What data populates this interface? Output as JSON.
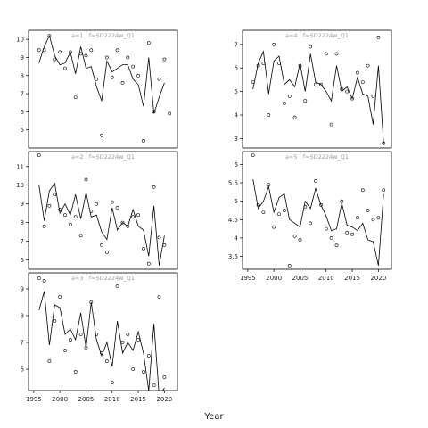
{
  "figure": {
    "xlabel": "Year"
  },
  "chart_data": [
    {
      "type": "line",
      "title": "a=1 : f=SD2224w_Q1",
      "xlim": [
        1994,
        2022.5
      ],
      "ylim": [
        4,
        10.5
      ],
      "yticks": [
        5,
        6,
        7,
        8,
        9,
        10
      ],
      "xticks": [],
      "series": [
        {
          "style": "line",
          "x": [
            1996,
            1997,
            1998,
            1999,
            2000,
            2001,
            2002,
            2003,
            2004,
            2005,
            2006,
            2007,
            2008,
            2009,
            2010,
            2011,
            2012,
            2013,
            2014,
            2015,
            2016,
            2017,
            2018,
            2019,
            2020
          ],
          "y": [
            8.7,
            9.6,
            10.2,
            9.1,
            8.6,
            8.7,
            9.3,
            8.1,
            9.6,
            8.4,
            8.5,
            7.4,
            6.6,
            8.8,
            8.2,
            8.4,
            8.6,
            8.6,
            7.8,
            7.5,
            6.3,
            9.0,
            5.9,
            6.8,
            7.6
          ]
        },
        {
          "style": "points",
          "x": [
            1996,
            1997,
            1998,
            1999,
            2000,
            2001,
            2002,
            2003,
            2004,
            2005,
            2006,
            2007,
            2008,
            2009,
            2010,
            2011,
            2012,
            2013,
            2014,
            2015,
            2016,
            2017,
            2018,
            2019,
            2020,
            2021
          ],
          "y": [
            9.4,
            9.4,
            10.2,
            8.9,
            9.3,
            8.4,
            9.3,
            6.8,
            9.2,
            9.1,
            9.4,
            7.8,
            4.7,
            9.0,
            7.9,
            9.4,
            7.6,
            9.0,
            8.5,
            8.0,
            4.4,
            9.8,
            6.0,
            7.8,
            8.9,
            5.9
          ]
        }
      ]
    },
    {
      "type": "line",
      "title": "a=2 : f=SD2224w_Q1",
      "xlim": [
        1994,
        2022.5
      ],
      "ylim": [
        5.5,
        11.8
      ],
      "yticks": [
        6,
        7,
        8,
        9,
        10,
        11
      ],
      "xticks": [],
      "series": [
        {
          "style": "line",
          "x": [
            1996,
            1997,
            1998,
            1999,
            2000,
            2001,
            2002,
            2003,
            2004,
            2005,
            2006,
            2007,
            2008,
            2009,
            2010,
            2011,
            2012,
            2013,
            2014,
            2015,
            2016,
            2017,
            2018,
            2019,
            2020
          ],
          "y": [
            10.0,
            8.1,
            9.7,
            10.1,
            8.5,
            9.0,
            8.4,
            9.5,
            8.2,
            9.6,
            8.3,
            8.4,
            7.5,
            7.1,
            8.8,
            7.6,
            8.0,
            7.8,
            8.7,
            7.8,
            7.6,
            6.2,
            8.9,
            5.7,
            7.3
          ]
        },
        {
          "style": "points",
          "x": [
            1996,
            1997,
            1998,
            1999,
            2000,
            2001,
            2002,
            2003,
            2004,
            2005,
            2006,
            2007,
            2008,
            2009,
            2010,
            2011,
            2012,
            2013,
            2014,
            2015,
            2016,
            2017,
            2018,
            2019,
            2020
          ],
          "y": [
            11.6,
            7.8,
            8.9,
            9.5,
            8.7,
            8.4,
            7.9,
            8.3,
            7.3,
            10.3,
            8.6,
            9.0,
            6.8,
            6.4,
            9.1,
            8.8,
            8.0,
            7.8,
            8.3,
            8.4,
            6.6,
            5.8,
            9.9,
            7.2,
            6.8
          ]
        }
      ]
    },
    {
      "type": "line",
      "title": "a=3 : f=SD2224w_Q1",
      "xlim": [
        1994,
        2022.5
      ],
      "ylim": [
        5.2,
        9.6
      ],
      "yticks": [
        6,
        7,
        8,
        9
      ],
      "xticks": [
        1995,
        2000,
        2005,
        2010,
        2015,
        2020
      ],
      "series": [
        {
          "style": "line",
          "x": [
            1996,
            1997,
            1998,
            1999,
            2000,
            2001,
            2002,
            2003,
            2004,
            2005,
            2006,
            2007,
            2008,
            2009,
            2010,
            2011,
            2012,
            2013,
            2014,
            2015,
            2016,
            2017,
            2018,
            2019,
            2020
          ],
          "y": [
            8.2,
            8.9,
            6.9,
            8.4,
            8.3,
            7.3,
            7.5,
            7.1,
            8.1,
            6.8,
            8.5,
            7.1,
            6.5,
            7.0,
            6.1,
            7.8,
            6.6,
            7.0,
            6.7,
            7.4,
            6.6,
            5.2,
            7.7,
            5.0,
            5.3
          ]
        },
        {
          "style": "points",
          "x": [
            1996,
            1997,
            1998,
            1999,
            2000,
            2001,
            2002,
            2003,
            2004,
            2005,
            2006,
            2007,
            2008,
            2009,
            2010,
            2011,
            2012,
            2013,
            2014,
            2015,
            2016,
            2017,
            2018,
            2019,
            2020
          ],
          "y": [
            9.4,
            9.3,
            6.3,
            7.8,
            8.7,
            6.7,
            7.1,
            5.9,
            7.3,
            6.8,
            8.5,
            7.3,
            6.6,
            6.3,
            5.5,
            9.1,
            7.0,
            7.3,
            6.0,
            7.1,
            5.9,
            6.5,
            5.4,
            8.7,
            5.7
          ]
        }
      ]
    },
    {
      "type": "line",
      "title": "a=4 : f=SD2224w_Q1",
      "xlim": [
        1994,
        2022.5
      ],
      "ylim": [
        2.6,
        7.6
      ],
      "yticks": [
        3,
        4,
        5,
        6,
        7
      ],
      "xticks": [],
      "series": [
        {
          "style": "line",
          "x": [
            1996,
            1997,
            1998,
            1999,
            2000,
            2001,
            2002,
            2003,
            2004,
            2005,
            2006,
            2007,
            2008,
            2009,
            2010,
            2011,
            2012,
            2013,
            2014,
            2015,
            2016,
            2017,
            2018,
            2019,
            2020,
            2021
          ],
          "y": [
            5.1,
            6.2,
            6.7,
            4.9,
            6.3,
            6.5,
            5.3,
            5.5,
            5.2,
            6.2,
            5.0,
            6.6,
            5.4,
            5.3,
            5.0,
            4.6,
            6.1,
            5.0,
            5.2,
            4.7,
            5.6,
            4.9,
            4.8,
            3.6,
            6.1,
            2.8
          ]
        },
        {
          "style": "points",
          "x": [
            1996,
            1997,
            1998,
            1999,
            2000,
            2001,
            2002,
            2003,
            2004,
            2005,
            2006,
            2007,
            2008,
            2009,
            2010,
            2011,
            2012,
            2013,
            2014,
            2015,
            2016,
            2017,
            2018,
            2019,
            2020,
            2021
          ],
          "y": [
            5.4,
            6.1,
            6.2,
            4.0,
            7.0,
            6.2,
            4.5,
            4.8,
            3.9,
            6.1,
            4.6,
            6.9,
            5.3,
            5.3,
            6.6,
            3.6,
            6.6,
            5.1,
            5.0,
            4.7,
            5.8,
            5.4,
            6.1,
            4.8,
            7.3,
            2.8
          ]
        }
      ]
    },
    {
      "type": "line",
      "title": "a=5 : f=SD2224w_Q1",
      "xlim": [
        1994,
        2022.5
      ],
      "ylim": [
        3.15,
        6.35
      ],
      "yticks": [
        3.5,
        4.0,
        4.5,
        5.0,
        5.5,
        6.0
      ],
      "xticks": [
        1995,
        2000,
        2005,
        2010,
        2015,
        2020
      ],
      "series": [
        {
          "style": "line",
          "x": [
            1996,
            1997,
            1998,
            1999,
            2000,
            2001,
            2002,
            2003,
            2004,
            2005,
            2006,
            2007,
            2008,
            2009,
            2010,
            2011,
            2012,
            2013,
            2014,
            2015,
            2016,
            2017,
            2018,
            2019,
            2020,
            2021
          ],
          "y": [
            5.6,
            4.8,
            5.0,
            5.4,
            4.7,
            5.1,
            5.2,
            4.5,
            4.4,
            4.3,
            5.0,
            4.8,
            5.35,
            4.9,
            4.6,
            4.2,
            4.25,
            4.95,
            4.35,
            4.3,
            4.2,
            4.4,
            3.95,
            3.9,
            3.25,
            5.2
          ]
        },
        {
          "style": "points",
          "x": [
            1996,
            1997,
            1998,
            1999,
            2000,
            2001,
            2002,
            2003,
            2004,
            2005,
            2006,
            2007,
            2008,
            2009,
            2010,
            2011,
            2012,
            2013,
            2014,
            2015,
            2016,
            2017,
            2018,
            2019,
            2020,
            2021
          ],
          "y": [
            6.25,
            4.9,
            4.7,
            5.45,
            4.3,
            4.65,
            4.75,
            3.25,
            4.05,
            3.95,
            4.85,
            4.4,
            5.55,
            4.9,
            4.25,
            4.0,
            3.8,
            5.0,
            4.15,
            4.1,
            4.55,
            5.3,
            4.75,
            4.5,
            4.55,
            5.3
          ]
        }
      ]
    }
  ]
}
